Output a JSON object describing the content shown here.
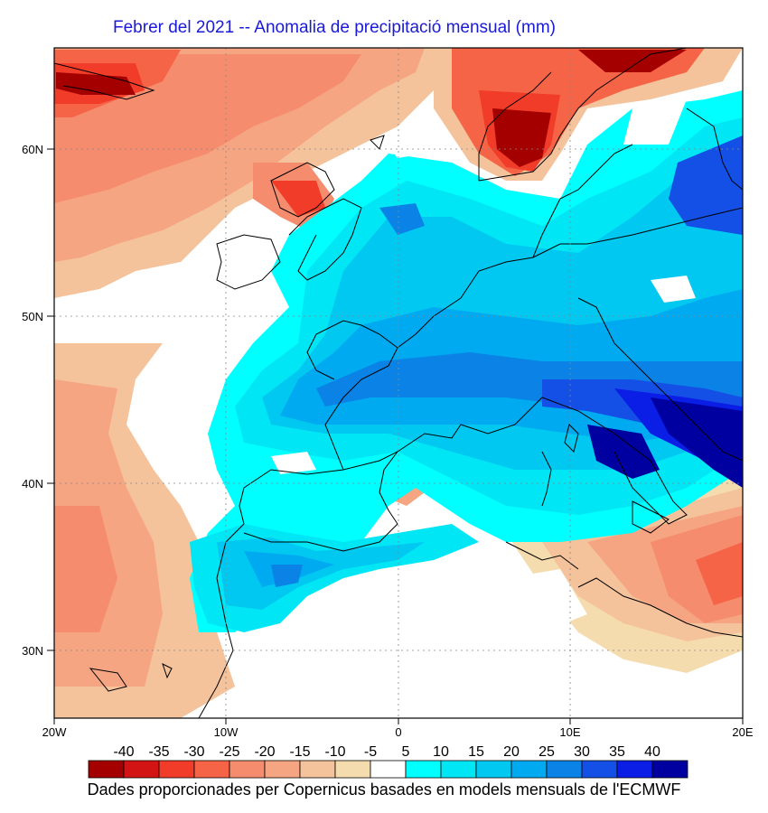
{
  "title": "Febrer del 2021 -- Anomalia de precipitació mensual (mm)",
  "credit": "Dades proporcionades per Copernicus basades en models mensuals de l'ECMWF",
  "lat_labels": [
    "60N",
    "50N",
    "40N",
    "30N"
  ],
  "lon_labels": [
    "20W",
    "10W",
    "0",
    "10E",
    "20E"
  ],
  "legend": {
    "labels": [
      "-40",
      "-35",
      "-30",
      "-25",
      "-20",
      "-15",
      "-10",
      "-5",
      "5",
      "10",
      "15",
      "20",
      "25",
      "30",
      "35",
      "40"
    ],
    "colors": [
      "#a50000",
      "#d21414",
      "#f03c28",
      "#f56446",
      "#f58c6e",
      "#f5a582",
      "#f5c39b",
      "#f5dcaf",
      "#ffffff",
      "#00ffff",
      "#00e6f5",
      "#00c8f0",
      "#00aaf0",
      "#0a82e6",
      "#1450e6",
      "#0a1ee6",
      "#0000a0"
    ]
  },
  "map": {
    "lon_range": [
      -20,
      20
    ],
    "lat_range": [
      26,
      66
    ],
    "grid_lats": [
      60,
      50,
      40,
      30
    ],
    "grid_lons": [
      -10,
      0,
      10
    ]
  }
}
